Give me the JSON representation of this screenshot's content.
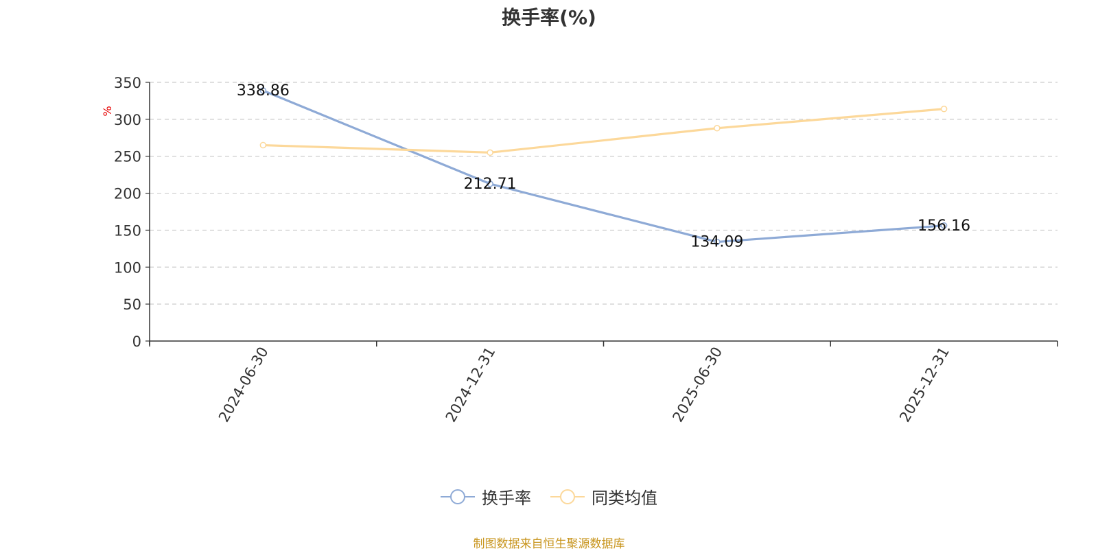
{
  "title": "换手率(%)",
  "source_text": "制图数据来自恒生聚源数据库",
  "chart_data": {
    "type": "line",
    "title": "换手率(%)",
    "ylabel": "%",
    "xlabel": "",
    "categories": [
      "2024-06-30",
      "2024-12-31",
      "2025-06-30",
      "2025-12-31"
    ],
    "ylim": [
      0,
      350
    ],
    "yticks": [
      0,
      50,
      100,
      150,
      200,
      250,
      300,
      350
    ],
    "grid": true,
    "legend_position": "bottom",
    "series": [
      {
        "name": "换手率",
        "color": "#8eaad6",
        "values": [
          338.86,
          212.71,
          134.09,
          156.16
        ],
        "labels": [
          "338.86",
          "212.71",
          "134.09",
          "156.16"
        ]
      },
      {
        "name": "同类均值",
        "color": "#fcd89a",
        "values": [
          265,
          255,
          288,
          314
        ],
        "labels": []
      }
    ]
  }
}
